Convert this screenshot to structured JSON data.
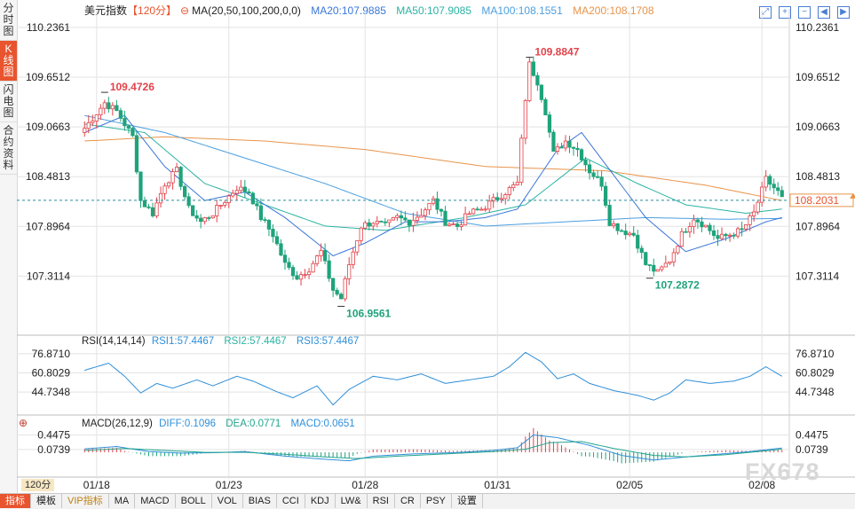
{
  "sidebar": {
    "items": [
      "分时图",
      "K线图",
      "闪电图",
      "合约资料"
    ],
    "active": 1
  },
  "header": {
    "title": "美元指数",
    "period": "【120分】",
    "ma_label": "MA(20,50,100,200,0,0)",
    "ma20": "MA20:107.9885",
    "ma50": "MA50:107.9085",
    "ma100": "MA100:108.1551",
    "ma200": "MA200:108.1708"
  },
  "colors": {
    "up": "#e2424a",
    "down": "#1fa37a",
    "ma20": "#3a76d8",
    "ma50": "#2bb3a3",
    "ma100": "#4b9fe0",
    "ma200": "#e8944a",
    "rsi": "#2f8fd8",
    "dif": "#2f8fd8",
    "dea": "#22a48e",
    "grid": "#e3e3e3",
    "axis": "#222222"
  },
  "price_axis": {
    "ticks": [
      "110.2361",
      "109.6512",
      "109.0663",
      "108.4813",
      "107.8964",
      "107.3114"
    ],
    "current": "108.2031"
  },
  "annotations": {
    "high1": "109.4726",
    "high2": "109.8847",
    "low1": "106.9561",
    "low2": "107.2872"
  },
  "rsi": {
    "label": "RSI(14,14,14)",
    "rsi1": "RSI1:57.4467",
    "rsi2": "RSI2:57.4467",
    "rsi3": "RSI3:57.4467",
    "ticks": [
      "76.8710",
      "60.8029",
      "44.7348"
    ]
  },
  "macd": {
    "label": "MACD(26,12,9)",
    "diff": "DIFF:0.1096",
    "dea": "DEA:0.0771",
    "macd": "MACD:0.0651",
    "ticks": [
      "0.4475",
      "0.0739"
    ]
  },
  "x_axis": {
    "labels": [
      "01/18",
      "01/23",
      "01/28",
      "01/31",
      "02/05",
      "02/08"
    ],
    "period_box": "120分"
  },
  "watermark": "FX678",
  "bottom_tabs": [
    "指标",
    "模板",
    "VIP指标",
    "MA",
    "MACD",
    "BOLL",
    "VOL",
    "BIAS",
    "CCI",
    "KDJ",
    "LW&",
    "RSI",
    "CR",
    "PSY",
    "设置"
  ],
  "chart_data": {
    "type": "candlestick",
    "title": "美元指数 120分",
    "ylim": [
      106.7,
      110.35
    ],
    "x_labels": [
      "01/18",
      "01/23",
      "01/28",
      "01/31",
      "02/05",
      "02/08"
    ],
    "close_anchors": [
      [
        0,
        109.05
      ],
      [
        5,
        109.35
      ],
      [
        8,
        109.25
      ],
      [
        12,
        108.95
      ],
      [
        14,
        108.2
      ],
      [
        17,
        108.05
      ],
      [
        20,
        108.4
      ],
      [
        23,
        108.55
      ],
      [
        26,
        108.1
      ],
      [
        29,
        107.95
      ],
      [
        32,
        108.05
      ],
      [
        35,
        108.2
      ],
      [
        38,
        108.35
      ],
      [
        41,
        108.3
      ],
      [
        44,
        108.0
      ],
      [
        47,
        107.8
      ],
      [
        50,
        107.45
      ],
      [
        53,
        107.3
      ],
      [
        56,
        107.4
      ],
      [
        59,
        107.6
      ],
      [
        62,
        107.15
      ],
      [
        64,
        107.05
      ],
      [
        66,
        107.45
      ],
      [
        69,
        107.9
      ],
      [
        72,
        107.95
      ],
      [
        75,
        107.9
      ],
      [
        78,
        108.0
      ],
      [
        81,
        107.95
      ],
      [
        84,
        108.05
      ],
      [
        87,
        108.2
      ],
      [
        90,
        107.95
      ],
      [
        93,
        107.9
      ],
      [
        96,
        108.05
      ],
      [
        99,
        108.1
      ],
      [
        102,
        108.2
      ],
      [
        105,
        108.3
      ],
      [
        108,
        108.4
      ],
      [
        110,
        109.4
      ],
      [
        111,
        109.8
      ],
      [
        113,
        109.6
      ],
      [
        115,
        109.25
      ],
      [
        117,
        108.75
      ],
      [
        120,
        108.9
      ],
      [
        123,
        108.8
      ],
      [
        126,
        108.55
      ],
      [
        129,
        108.4
      ],
      [
        131,
        107.95
      ],
      [
        134,
        107.85
      ],
      [
        137,
        107.8
      ],
      [
        140,
        107.45
      ],
      [
        143,
        107.35
      ],
      [
        146,
        107.5
      ],
      [
        149,
        107.8
      ],
      [
        152,
        108.0
      ],
      [
        155,
        107.9
      ],
      [
        158,
        107.75
      ],
      [
        161,
        107.8
      ],
      [
        164,
        107.85
      ],
      [
        167,
        108.05
      ],
      [
        170,
        108.45
      ],
      [
        173,
        108.3
      ],
      [
        174,
        108.22
      ]
    ],
    "ma20_anchors": [
      [
        0,
        109.0
      ],
      [
        10,
        109.2
      ],
      [
        20,
        108.6
      ],
      [
        30,
        108.2
      ],
      [
        40,
        108.3
      ],
      [
        50,
        108.0
      ],
      [
        62,
        107.55
      ],
      [
        70,
        107.7
      ],
      [
        80,
        107.95
      ],
      [
        90,
        107.95
      ],
      [
        100,
        108.0
      ],
      [
        108,
        108.1
      ],
      [
        118,
        108.8
      ],
      [
        124,
        109.0
      ],
      [
        132,
        108.5
      ],
      [
        140,
        108.0
      ],
      [
        150,
        107.6
      ],
      [
        160,
        107.75
      ],
      [
        170,
        107.95
      ],
      [
        174,
        108.0
      ]
    ],
    "ma50_anchors": [
      [
        0,
        109.1
      ],
      [
        15,
        109.0
      ],
      [
        30,
        108.4
      ],
      [
        45,
        108.15
      ],
      [
        60,
        107.9
      ],
      [
        75,
        107.85
      ],
      [
        95,
        108.0
      ],
      [
        110,
        108.15
      ],
      [
        125,
        108.7
      ],
      [
        138,
        108.4
      ],
      [
        150,
        108.15
      ],
      [
        165,
        108.05
      ],
      [
        174,
        108.1
      ]
    ],
    "ma100_anchors": [
      [
        0,
        109.2
      ],
      [
        20,
        109.0
      ],
      [
        40,
        108.7
      ],
      [
        60,
        108.4
      ],
      [
        80,
        108.05
      ],
      [
        100,
        107.9
      ],
      [
        120,
        107.95
      ],
      [
        140,
        108.0
      ],
      [
        160,
        107.98
      ],
      [
        174,
        107.99
      ]
    ],
    "ma200_anchors": [
      [
        0,
        108.9
      ],
      [
        20,
        108.95
      ],
      [
        45,
        108.9
      ],
      [
        70,
        108.8
      ],
      [
        100,
        108.6
      ],
      [
        130,
        108.55
      ],
      [
        155,
        108.38
      ],
      [
        174,
        108.2
      ]
    ],
    "high_markers": [
      {
        "value": 109.4726,
        "index": 5
      },
      {
        "value": 109.8847,
        "index": 111
      }
    ],
    "low_markers": [
      {
        "value": 106.9561,
        "index": 64
      },
      {
        "value": 107.2872,
        "index": 141
      }
    ],
    "rsi_ylim": [
      30,
      85
    ],
    "rsi_anchors": [
      [
        0,
        63
      ],
      [
        6,
        69
      ],
      [
        10,
        58
      ],
      [
        14,
        44
      ],
      [
        18,
        52
      ],
      [
        22,
        48
      ],
      [
        28,
        55
      ],
      [
        32,
        50
      ],
      [
        38,
        58
      ],
      [
        42,
        54
      ],
      [
        48,
        45
      ],
      [
        52,
        40
      ],
      [
        58,
        50
      ],
      [
        62,
        34
      ],
      [
        66,
        47
      ],
      [
        72,
        58
      ],
      [
        78,
        55
      ],
      [
        84,
        60
      ],
      [
        90,
        52
      ],
      [
        96,
        55
      ],
      [
        102,
        58
      ],
      [
        106,
        66
      ],
      [
        110,
        78
      ],
      [
        114,
        70
      ],
      [
        118,
        56
      ],
      [
        122,
        60
      ],
      [
        126,
        52
      ],
      [
        132,
        46
      ],
      [
        138,
        42
      ],
      [
        142,
        38
      ],
      [
        146,
        44
      ],
      [
        150,
        55
      ],
      [
        156,
        52
      ],
      [
        162,
        54
      ],
      [
        166,
        58
      ],
      [
        170,
        66
      ],
      [
        174,
        58
      ]
    ],
    "macd_ylim": [
      -0.55,
      0.6
    ],
    "dif_anchors": [
      [
        0,
        0.09
      ],
      [
        8,
        0.15
      ],
      [
        16,
        0.02
      ],
      [
        24,
        -0.02
      ],
      [
        32,
        -0.01
      ],
      [
        40,
        0.02
      ],
      [
        50,
        -0.1
      ],
      [
        60,
        -0.18
      ],
      [
        66,
        -0.22
      ],
      [
        72,
        -0.1
      ],
      [
        82,
        -0.04
      ],
      [
        92,
        -0.01
      ],
      [
        102,
        0.05
      ],
      [
        108,
        0.12
      ],
      [
        112,
        0.45
      ],
      [
        118,
        0.38
      ],
      [
        126,
        0.18
      ],
      [
        134,
        -0.08
      ],
      [
        142,
        -0.2
      ],
      [
        150,
        -0.12
      ],
      [
        158,
        -0.05
      ],
      [
        166,
        0.02
      ],
      [
        174,
        0.11
      ]
    ],
    "dea_anchors": [
      [
        0,
        0.05
      ],
      [
        10,
        0.1
      ],
      [
        20,
        0.05
      ],
      [
        30,
        0.0
      ],
      [
        40,
        0.0
      ],
      [
        50,
        -0.05
      ],
      [
        60,
        -0.12
      ],
      [
        68,
        -0.16
      ],
      [
        78,
        -0.1
      ],
      [
        90,
        -0.04
      ],
      [
        102,
        0.02
      ],
      [
        110,
        0.08
      ],
      [
        116,
        0.25
      ],
      [
        124,
        0.28
      ],
      [
        132,
        0.1
      ],
      [
        142,
        -0.08
      ],
      [
        150,
        -0.12
      ],
      [
        160,
        -0.06
      ],
      [
        168,
        0.02
      ],
      [
        174,
        0.08
      ]
    ],
    "ma_lines": [
      "MA20",
      "MA50",
      "MA100",
      "MA200"
    ]
  }
}
